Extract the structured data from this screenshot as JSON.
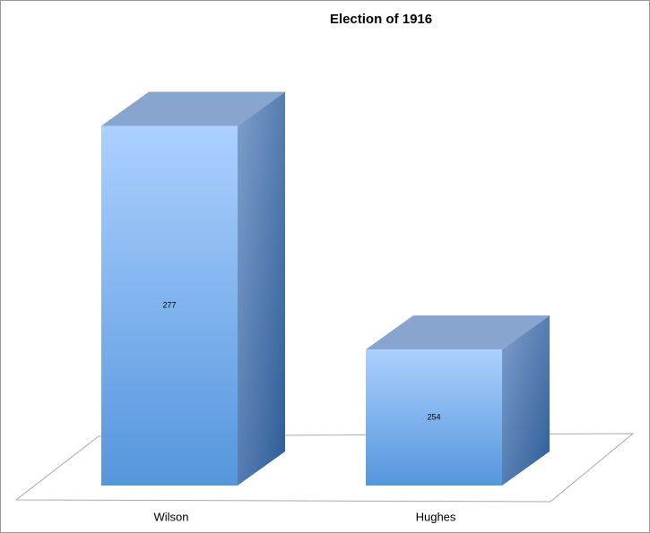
{
  "chart_data": {
    "type": "bar3d",
    "title": "Election of 1916",
    "categories": [
      "Wilson",
      "Hughes"
    ],
    "values": [
      277,
      254
    ],
    "color": "#5b9be0",
    "ylim": [
      240,
      280
    ]
  }
}
